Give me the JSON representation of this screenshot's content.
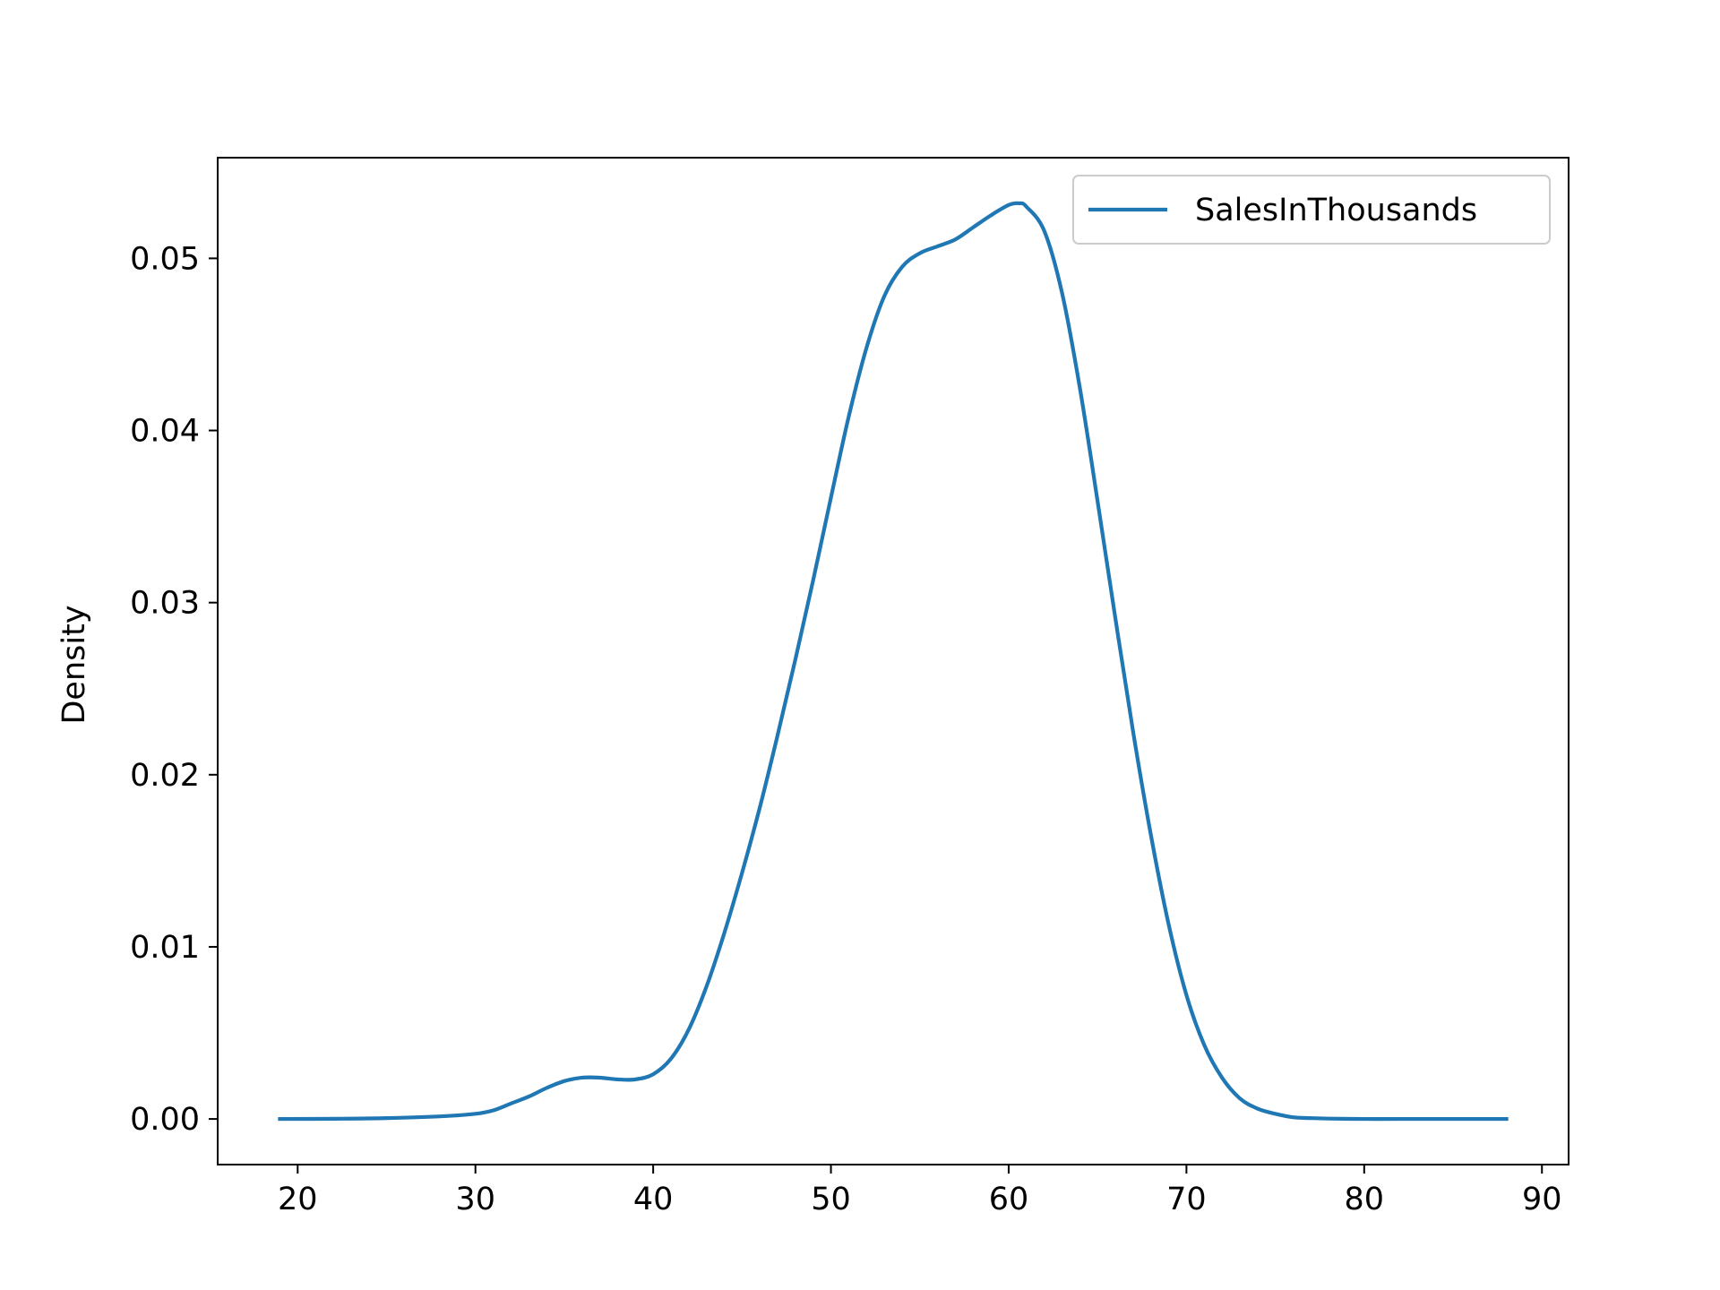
{
  "chart_data": {
    "type": "line",
    "title": "",
    "xlabel": "",
    "ylabel": "Density",
    "xlim": [
      15.5,
      91.5
    ],
    "ylim": [
      -0.00265,
      0.05585
    ],
    "xticks": [
      20,
      30,
      40,
      50,
      60,
      70,
      80,
      90
    ],
    "xtick_labels": [
      "20",
      "30",
      "40",
      "50",
      "60",
      "70",
      "80",
      "90"
    ],
    "yticks": [
      0.0,
      0.01,
      0.02,
      0.03,
      0.04,
      0.05
    ],
    "ytick_labels": [
      "0.00",
      "0.01",
      "0.02",
      "0.03",
      "0.04",
      "0.05"
    ],
    "grid": false,
    "legend": {
      "position": "upper right",
      "entries": [
        "SalesInThousands"
      ]
    },
    "series": [
      {
        "name": "SalesInThousands",
        "color": "#1f77b4",
        "x": [
          19,
          22,
          25,
          28,
          30,
          31,
          32,
          33,
          34,
          35,
          36,
          37,
          38,
          39,
          40,
          41,
          42,
          43,
          44,
          45,
          46,
          47,
          48,
          49,
          50,
          51,
          52,
          53,
          54,
          55,
          56,
          57,
          58,
          59,
          60,
          60.6,
          61,
          62,
          63,
          64,
          65,
          66,
          67,
          68,
          69,
          70,
          71,
          72,
          73,
          74,
          75,
          76,
          77,
          78,
          80,
          82,
          85,
          88
        ],
        "y": [
          0.0,
          1e-05,
          5e-05,
          0.00015,
          0.0003,
          0.0005,
          0.0009,
          0.0013,
          0.0018,
          0.0022,
          0.0024,
          0.0024,
          0.0023,
          0.0023,
          0.0026,
          0.0035,
          0.0052,
          0.0077,
          0.0108,
          0.0143,
          0.0181,
          0.0223,
          0.0267,
          0.0313,
          0.0361,
          0.0408,
          0.0448,
          0.0478,
          0.0495,
          0.0503,
          0.0507,
          0.0511,
          0.0518,
          0.0525,
          0.0531,
          0.0532,
          0.053,
          0.0516,
          0.048,
          0.0425,
          0.0359,
          0.0291,
          0.0225,
          0.0165,
          0.0113,
          0.0072,
          0.0043,
          0.0024,
          0.0012,
          0.0006,
          0.0003,
          0.0001,
          5e-05,
          2e-05,
          0.0,
          0.0,
          0.0,
          0.0
        ]
      }
    ]
  }
}
